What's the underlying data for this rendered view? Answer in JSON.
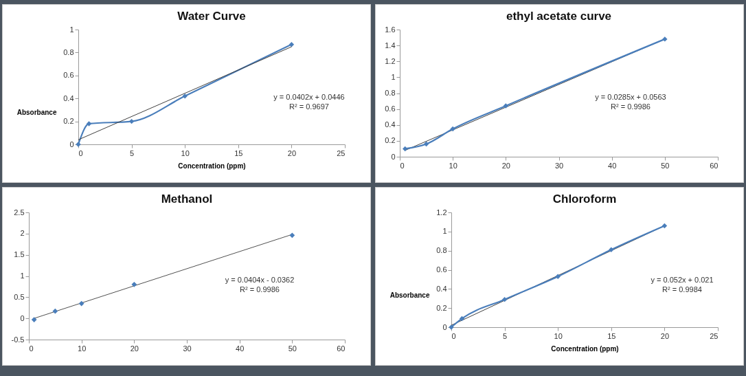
{
  "chart_data": [
    {
      "type": "line",
      "title": "Water Curve",
      "xlabel": "Concentration (ppm)",
      "ylabel": "Absorbance",
      "xlim": [
        0,
        25
      ],
      "xticks": [
        0,
        5,
        10,
        15,
        20,
        25
      ],
      "ylim": [
        0,
        1
      ],
      "yticks": [
        0,
        0.2,
        0.4,
        0.6,
        0.8,
        1
      ],
      "marker": "diamond",
      "grid": false,
      "series": [
        {
          "color": "#4a7ebb",
          "x": [
            0,
            1,
            5,
            10,
            20
          ],
          "values": [
            0,
            0.18,
            0.2,
            0.42,
            0.87
          ]
        },
        {
          "color": "#404040",
          "marker": "none",
          "x": [
            0,
            20
          ],
          "values": [
            0.04,
            0.85
          ]
        }
      ],
      "annotations": [
        "y = 0.0402x + 0.0446",
        "R² = 0.9697"
      ]
    },
    {
      "type": "line",
      "title": "ethyl acetate curve",
      "xlim": [
        0,
        60
      ],
      "xticks": [
        0,
        10,
        20,
        30,
        40,
        50,
        60
      ],
      "ylim": [
        0,
        1.6
      ],
      "yticks": [
        0,
        0.2,
        0.4,
        0.6,
        0.8,
        1,
        1.2,
        1.4,
        1.6
      ],
      "marker": "diamond",
      "grid": false,
      "series": [
        {
          "color": "#404040",
          "marker": "none",
          "x": [
            1,
            50
          ],
          "values": [
            0.08,
            1.48
          ]
        },
        {
          "color": "#4a7ebb",
          "x": [
            1,
            5,
            10,
            20,
            50
          ],
          "values": [
            0.1,
            0.16,
            0.35,
            0.64,
            1.48
          ]
        }
      ],
      "annotations": [
        "y = 0.0285x + 0.0563",
        "R² = 0.9986"
      ]
    },
    {
      "type": "scatter",
      "title": "Methanol",
      "xlim": [
        0,
        60
      ],
      "xticks": [
        0,
        10,
        20,
        30,
        40,
        50,
        60
      ],
      "ylim": [
        -0.5,
        2.5
      ],
      "yticks": [
        -0.5,
        0,
        0.5,
        1,
        1.5,
        2,
        2.5
      ],
      "marker": "diamond",
      "grid": false,
      "series": [
        {
          "type": "line",
          "color": "#505050",
          "marker": "none",
          "x": [
            1,
            50
          ],
          "values": [
            0,
            1.98
          ]
        },
        {
          "color": "#4a7ebb",
          "x": [
            1,
            5,
            10,
            20,
            50
          ],
          "values": [
            -0.03,
            0.17,
            0.35,
            0.8,
            1.96
          ]
        }
      ],
      "annotations": [
        "y = 0.0404x - 0.0362",
        "R² = 0.9986"
      ]
    },
    {
      "type": "line",
      "title": "Chloroform",
      "xlabel": "Concentration (ppm)",
      "ylabel": "Absorbance",
      "xlim": [
        0,
        25
      ],
      "xticks": [
        0,
        5,
        10,
        15,
        20,
        25
      ],
      "ylim": [
        0,
        1.2
      ],
      "yticks": [
        0,
        0.2,
        0.4,
        0.6,
        0.8,
        1,
        1.2
      ],
      "marker": "diamond",
      "grid": false,
      "series": [
        {
          "color": "#404040",
          "marker": "none",
          "x": [
            0,
            20
          ],
          "values": [
            0.02,
            1.06
          ]
        },
        {
          "color": "#4a7ebb",
          "x": [
            0,
            1,
            5,
            10,
            15,
            20
          ],
          "values": [
            0,
            0.09,
            0.29,
            0.53,
            0.81,
            1.06
          ]
        }
      ],
      "annotations": [
        "y = 0.052x + 0.021",
        "R² = 0.9984"
      ]
    }
  ]
}
